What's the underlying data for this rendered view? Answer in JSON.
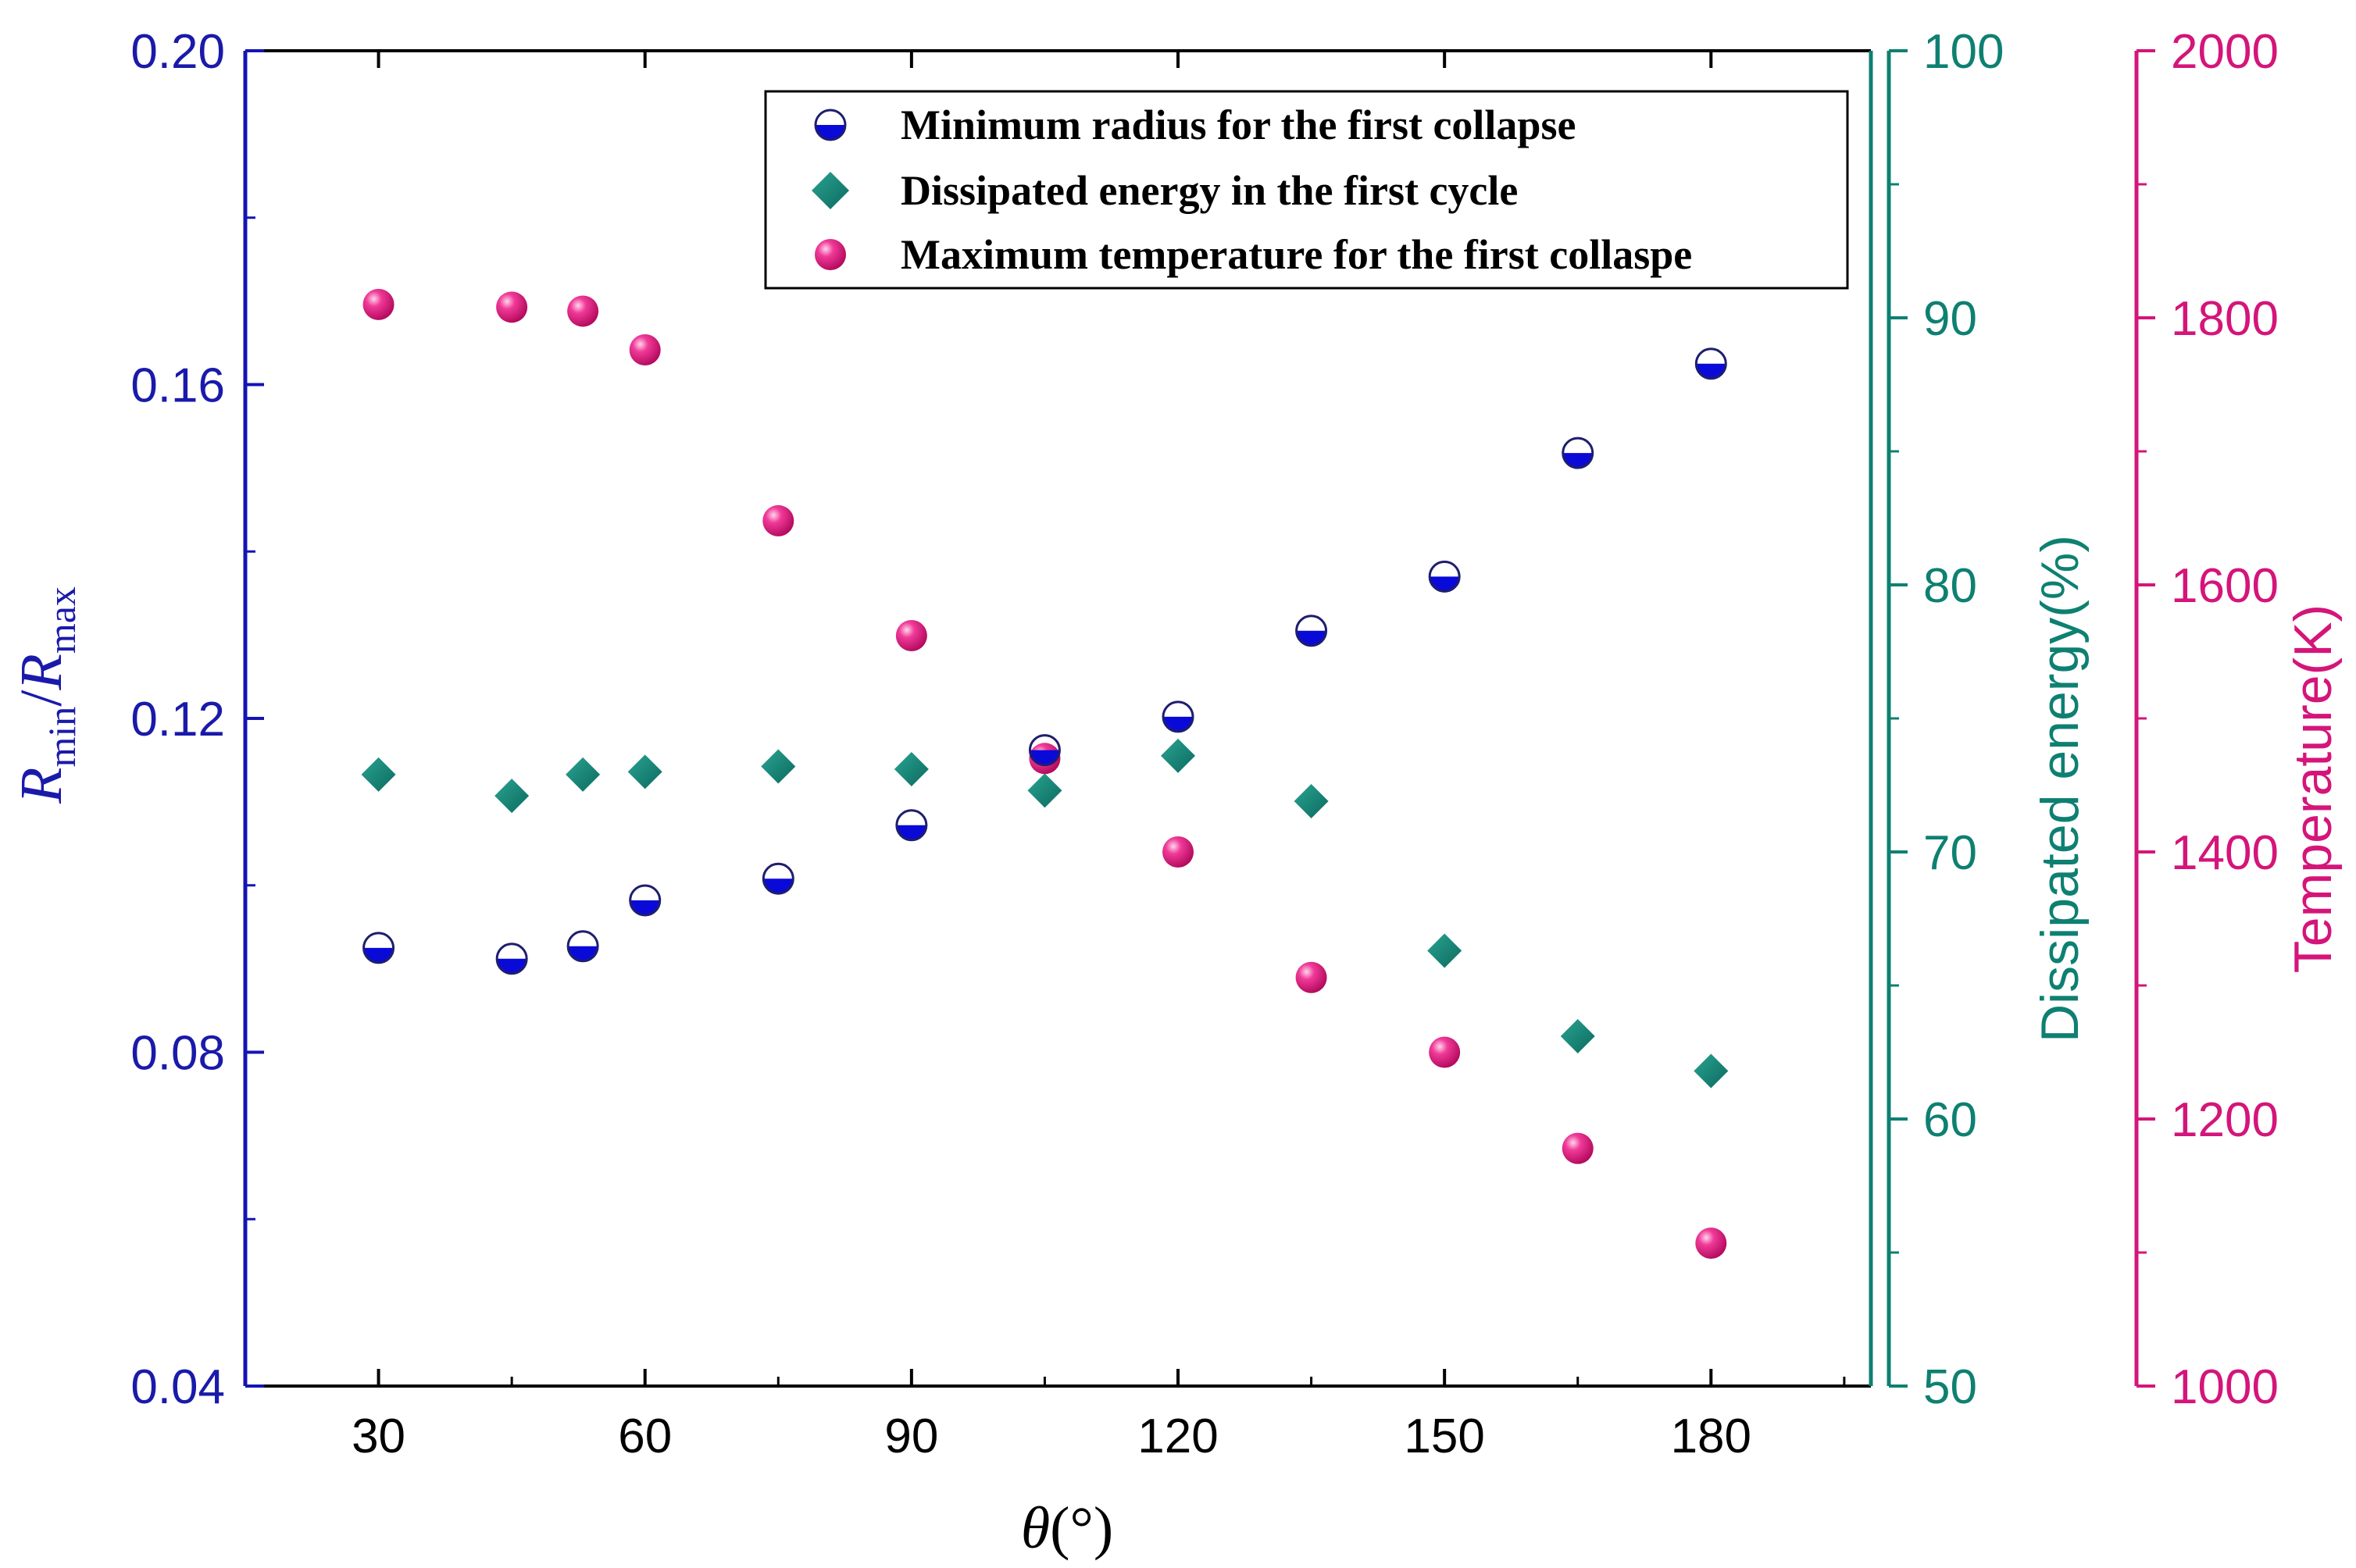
{
  "chart_data": {
    "type": "scatter",
    "x": [
      30,
      45,
      53,
      60,
      75,
      90,
      105,
      120,
      135,
      150,
      165,
      180
    ],
    "xlabel": "θ(°)",
    "xlabel_parts": {
      "symbol": "θ",
      "unit": "(°)"
    },
    "xlim": [
      15,
      198
    ],
    "xticks": [
      30,
      60,
      90,
      120,
      150,
      180
    ],
    "left_axis": {
      "label_parts": {
        "r1": "R",
        "sub1": "min",
        "slash": "/",
        "r2": "R",
        "sub2": "max"
      },
      "ylim": [
        0.04,
        0.2
      ],
      "ticks": [
        "0.04",
        "0.08",
        "0.12",
        "0.16",
        "0.20"
      ],
      "tick_values": [
        0.04,
        0.08,
        0.12,
        0.16,
        0.2
      ],
      "color": "#1a1aaa"
    },
    "middle_axis": {
      "label": "Dissipated energy(%)",
      "ylim": [
        50,
        100
      ],
      "ticks": [
        "50",
        "60",
        "70",
        "80",
        "90",
        "100"
      ],
      "tick_values": [
        50,
        60,
        70,
        80,
        90,
        100
      ],
      "color": "#0e8072"
    },
    "right_axis": {
      "label": "Temperature(K)",
      "ylim": [
        1000,
        2000
      ],
      "ticks": [
        "1000",
        "1200",
        "1400",
        "1600",
        "1800",
        "2000"
      ],
      "tick_values": [
        1000,
        1200,
        1400,
        1600,
        1800,
        2000
      ],
      "color": "#d4157a"
    },
    "series": [
      {
        "name": "Minimum radius for the first collapse",
        "axis": "left",
        "marker": "half-circle",
        "color": "#0a0ad8",
        "values": [
          0.0925,
          0.0912,
          0.0927,
          0.0982,
          0.1008,
          0.1072,
          0.1162,
          0.1202,
          0.1305,
          0.137,
          0.1518,
          0.1625
        ]
      },
      {
        "name": "Dissipated energy in the first cycle",
        "axis": "middle",
        "marker": "diamond",
        "color": "#138072",
        "values": [
          72.9,
          72.1,
          72.9,
          73.0,
          73.2,
          73.1,
          72.3,
          73.6,
          71.9,
          66.3,
          63.1,
          61.8
        ]
      },
      {
        "name": "Maximum temperature for the first collaspe",
        "axis": "right",
        "marker": "circle",
        "color": "#e8107e",
        "values": [
          1810,
          1808,
          1805,
          1776,
          1648,
          1562,
          1470,
          1400,
          1306,
          1250,
          1178,
          1107
        ]
      }
    ],
    "legend_position": "top-right",
    "grid": false
  }
}
